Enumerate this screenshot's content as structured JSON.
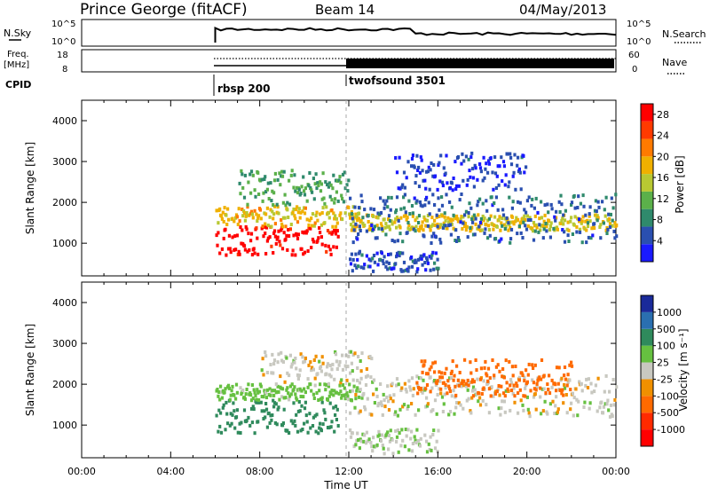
{
  "header": {
    "station": "Prince George (fitACF)",
    "beam": "Beam 14",
    "date": "04/May/2013"
  },
  "strips": {
    "noise": {
      "left_label": "N.Sky",
      "left_ticks": [
        "10^5",
        "10^0"
      ],
      "right_label": "N.Search",
      "right_ticks": [
        "10^5",
        "10^0"
      ]
    },
    "freq": {
      "left_label_top": "Freq.",
      "left_label_bottom": "[MHz]",
      "left_ticks": [
        "18",
        "8"
      ],
      "right_label": "Nave",
      "right_ticks": [
        "60",
        "0"
      ]
    },
    "cpid": {
      "label": "CPID",
      "programs": [
        {
          "name": "rbsp 200",
          "start": 6.0
        },
        {
          "name": "twofsound 3501",
          "start": 12.0
        }
      ]
    }
  },
  "chart_data": [
    {
      "type": "heatmap",
      "title": "",
      "xlabel": "Time UT",
      "ylabel": "Slant Range [km]",
      "x_ticks": [
        "00:00",
        "04:00",
        "08:00",
        "12:00",
        "16:00",
        "20:00",
        "00:00"
      ],
      "xlim_hours": [
        0,
        24
      ],
      "y_ticks": [
        1000,
        2000,
        3000,
        4000
      ],
      "ylim": [
        200,
        4500
      ],
      "colorbar": {
        "label": "Power [dB]",
        "ticks": [
          4,
          8,
          12,
          16,
          20,
          24,
          28
        ],
        "range": [
          0,
          30
        ],
        "colors": [
          "#1a1aff",
          "#2a4fb0",
          "#2f8a6c",
          "#5bb04a",
          "#b8c832",
          "#f0b000",
          "#ff7a00",
          "#ff3a00",
          "#ff0000"
        ]
      },
      "echo_bands": [
        {
          "t_start": 6.0,
          "t_end": 11.5,
          "range_low": 700,
          "range_high": 1400,
          "value": 29
        },
        {
          "t_start": 6.0,
          "t_end": 12.5,
          "range_low": 1400,
          "range_high": 1900,
          "value": 18
        },
        {
          "t_start": 7.0,
          "t_end": 12.0,
          "range_low": 1900,
          "range_high": 2800,
          "value": 10
        },
        {
          "t_start": 12.0,
          "t_end": 24.0,
          "range_low": 1300,
          "range_high": 1700,
          "value": 17
        },
        {
          "t_start": 12.0,
          "t_end": 24.0,
          "range_low": 1000,
          "range_high": 2200,
          "value": 6
        },
        {
          "t_start": 14.0,
          "t_end": 20.0,
          "range_low": 2300,
          "range_high": 3200,
          "value": 4
        },
        {
          "t_start": 12.0,
          "t_end": 16.0,
          "range_low": 300,
          "range_high": 800,
          "value": 5
        }
      ]
    },
    {
      "type": "heatmap",
      "title": "",
      "xlabel": "Time UT",
      "ylabel": "Slant Range [km]",
      "x_ticks": [
        "00:00",
        "04:00",
        "08:00",
        "12:00",
        "16:00",
        "20:00",
        "00:00"
      ],
      "xlim_hours": [
        0,
        24
      ],
      "y_ticks": [
        1000,
        2000,
        3000,
        4000
      ],
      "ylim": [
        200,
        4500
      ],
      "colorbar": {
        "label": "Velocity [m s⁻¹]",
        "ticks": [
          "1000",
          "500",
          "100",
          "25",
          "-25",
          "-100",
          "-500",
          "-1000"
        ],
        "colors": [
          "#1a2a9a",
          "#2a6fb0",
          "#2f8a5c",
          "#66c040",
          "#c8c8c0",
          "#f09000",
          "#ff6a00",
          "#ff2a00",
          "#ff0000"
        ]
      },
      "echo_bands": [
        {
          "t_start": 6.0,
          "t_end": 11.5,
          "range_low": 800,
          "range_high": 1600,
          "value": 150
        },
        {
          "t_start": 6.0,
          "t_end": 12.5,
          "range_low": 1600,
          "range_high": 2000,
          "value": 60
        },
        {
          "t_start": 8.0,
          "t_end": 13.0,
          "range_low": 2000,
          "range_high": 2800,
          "value": 0
        },
        {
          "t_start": 12.0,
          "t_end": 24.0,
          "range_low": 1200,
          "range_high": 2200,
          "value": 0
        },
        {
          "t_start": 15.0,
          "t_end": 22.0,
          "range_low": 1700,
          "range_high": 2600,
          "value": -150
        },
        {
          "t_start": 12.0,
          "t_end": 16.0,
          "range_low": 300,
          "range_high": 900,
          "value": 20
        }
      ]
    }
  ]
}
